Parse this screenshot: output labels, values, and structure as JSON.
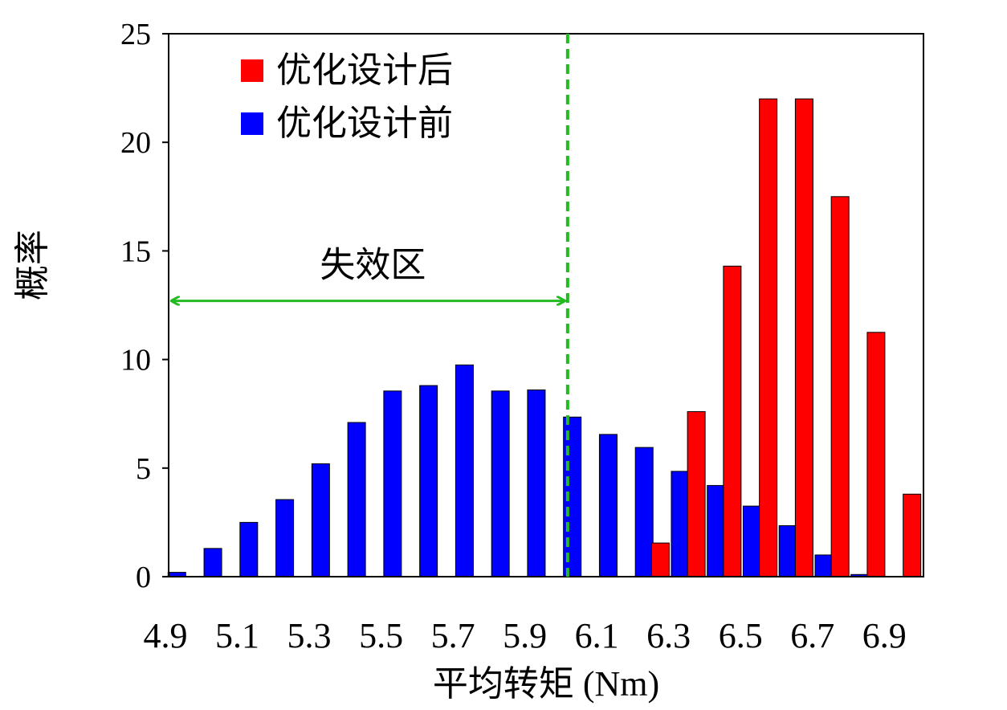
{
  "chart_data": {
    "type": "bar",
    "title": "",
    "xlabel": "平均转矩 (Nm)",
    "ylabel": "概率",
    "xlim": [
      4.9,
      7.0
    ],
    "ylim": [
      0,
      25
    ],
    "x_tick_labels": [
      "4.9",
      "5.1",
      "5.3",
      "5.5",
      "5.7",
      "5.9",
      "6.1",
      "6.3",
      "6.5",
      "6.7",
      "6.9"
    ],
    "y_tick_labels": [
      "0",
      "5",
      "10",
      "15",
      "20",
      "25"
    ],
    "categories": [
      "4.9",
      "5.0",
      "5.1",
      "5.2",
      "5.3",
      "5.4",
      "5.5",
      "5.6",
      "5.7",
      "5.8",
      "5.9",
      "6.0",
      "6.1",
      "6.2",
      "6.3",
      "6.4",
      "6.5",
      "6.6",
      "6.7",
      "6.8",
      "6.9"
    ],
    "series": [
      {
        "name": "优化设计前",
        "color": "#0000ff",
        "values": [
          0.2,
          1.3,
          2.5,
          3.55,
          5.2,
          7.1,
          8.55,
          8.8,
          9.75,
          8.55,
          8.6,
          7.35,
          6.55,
          5.95,
          4.85,
          4.2,
          3.25,
          2.35,
          1.0,
          0.1,
          null
        ]
      },
      {
        "name": "优化设计后",
        "color": "#ff0000",
        "values": [
          null,
          null,
          null,
          null,
          null,
          null,
          null,
          null,
          null,
          null,
          null,
          null,
          null,
          1.55,
          7.6,
          14.3,
          22.0,
          22.0,
          17.5,
          11.25,
          3.8
        ]
      }
    ],
    "threshold": {
      "x": 6.01,
      "color": "#22bb22"
    },
    "annotation": {
      "text": "失效区",
      "from_x": 4.9,
      "to_x": 6.01,
      "y": 12.7
    },
    "legend": {
      "position": "top-left"
    },
    "grid": false
  }
}
